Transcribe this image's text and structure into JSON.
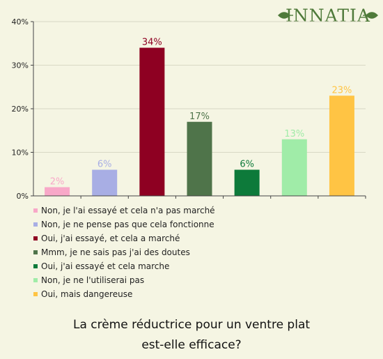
{
  "brand": {
    "name": "INNATIA",
    "color": "#4f7a3a",
    "icon": "leaf-ornament-icon"
  },
  "question": {
    "line1": "La crème réductrice pour un ventre plat",
    "line2": "est-elle efficace?"
  },
  "chart_data": {
    "type": "bar",
    "title": "",
    "xlabel": "",
    "ylabel": "",
    "ylim": [
      0,
      40
    ],
    "yticks": [
      {
        "value": 0,
        "label": "0%"
      },
      {
        "value": 10,
        "label": "10%"
      },
      {
        "value": 20,
        "label": "20%"
      },
      {
        "value": 30,
        "label": "30%"
      },
      {
        "value": 40,
        "label": "40%"
      }
    ],
    "grid": true,
    "legend_position": "bottom",
    "categories": [
      "Non, je l'ai essayé et cela n'a pas marché",
      "Non, je ne pense pas que cela fonctionne",
      "Oui, j'ai essayé, et cela a marché",
      "Mmm, je ne sais pas j'ai des doutes",
      "Oui, j'ai essayé et cela marche",
      "Non, je ne l'utiliserai pas",
      "Oui, mais dangereuse"
    ],
    "values": [
      2,
      6,
      34,
      17,
      6,
      13,
      23
    ],
    "value_labels": [
      "2%",
      "6%",
      "34%",
      "17%",
      "6%",
      "13%",
      "23%"
    ],
    "colors": [
      "#f8a8c8",
      "#a8aee4",
      "#8e0022",
      "#4f744a",
      "#0d7a3a",
      "#a0eca8",
      "#ffc444"
    ],
    "label_colors": [
      "#f8a8c8",
      "#a8aee4",
      "#8e0022",
      "#4f744a",
      "#0d7a3a",
      "#a0eca8",
      "#ffc444"
    ]
  }
}
